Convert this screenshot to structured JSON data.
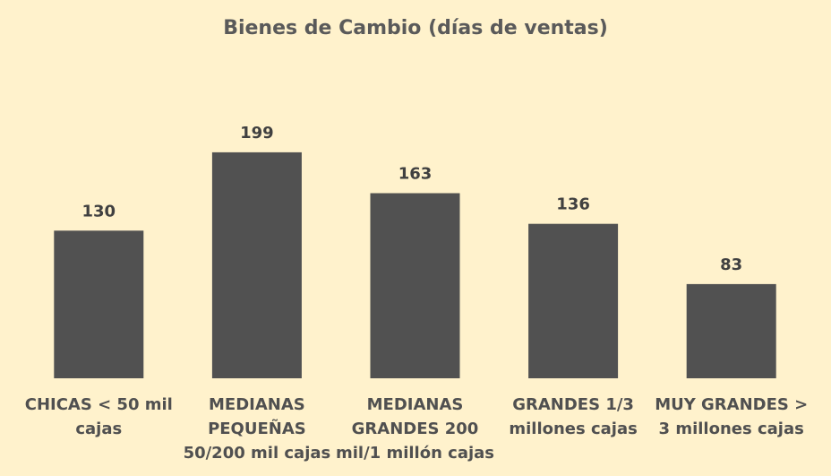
{
  "chart_data": {
    "type": "bar",
    "title": "Bienes de Cambio (días de ventas)",
    "categories": [
      [
        "CHICAS < 50 mil",
        "cajas"
      ],
      [
        "MEDIANAS",
        "PEQUEÑAS",
        "50/200 mil cajas"
      ],
      [
        "MEDIANAS",
        "GRANDES 200",
        "mil/1 millón cajas"
      ],
      [
        "GRANDES 1/3",
        "millones cajas"
      ],
      [
        "MUY GRANDES >",
        "3 millones cajas"
      ]
    ],
    "values": [
      130,
      199,
      163,
      136,
      83
    ],
    "data_labels": [
      "130",
      "199",
      "163",
      "136",
      "83"
    ],
    "ylim": [
      0,
      270
    ],
    "grid": false,
    "legend": "none",
    "colors": {
      "background": "#fff2cc",
      "bar": "#515151",
      "title": "#5a5a5a",
      "data_label": "#404040",
      "category_label": "#505050"
    }
  }
}
